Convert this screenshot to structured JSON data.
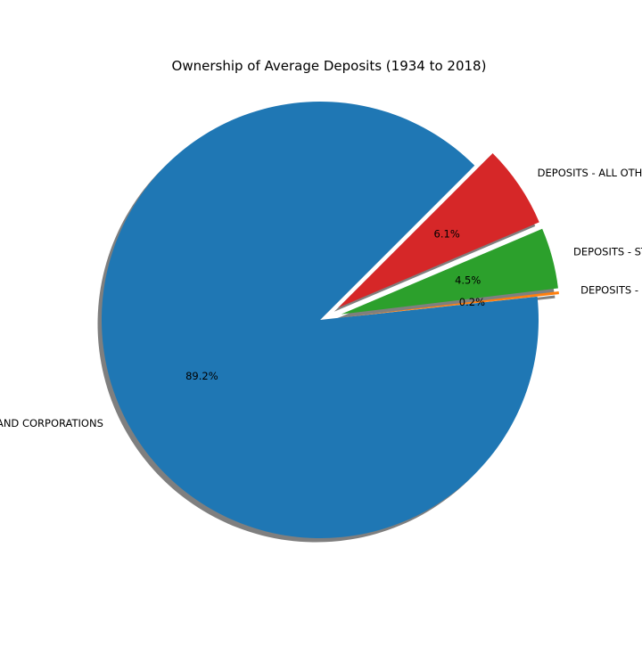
{
  "chart_data": {
    "type": "pie",
    "title": "Ownership of Average Deposits (1934 to 2018)",
    "slices": [
      {
        "label": "DEPOSITS - INDIVIDUALS, PARTNERSHIPS, AND CORPORATIONS",
        "value": 89.2,
        "pct_label": "89.2%",
        "color": "#1f77b4",
        "exploded": false
      },
      {
        "label": "DEPOSITS - U.S. GOVERNMENT",
        "value": 0.2,
        "pct_label": "0.2%",
        "color": "#ff7f0e",
        "exploded": true
      },
      {
        "label": "DEPOSITS - STATES AND POLITICAL SUBDIVISIONS",
        "value": 4.5,
        "pct_label": "4.5%",
        "color": "#2ca02c",
        "exploded": true
      },
      {
        "label": "DEPOSITS - ALL OTHER",
        "value": 6.1,
        "pct_label": "6.1%",
        "color": "#d62728",
        "exploded": true
      }
    ],
    "shadow": true,
    "legend": "none"
  }
}
